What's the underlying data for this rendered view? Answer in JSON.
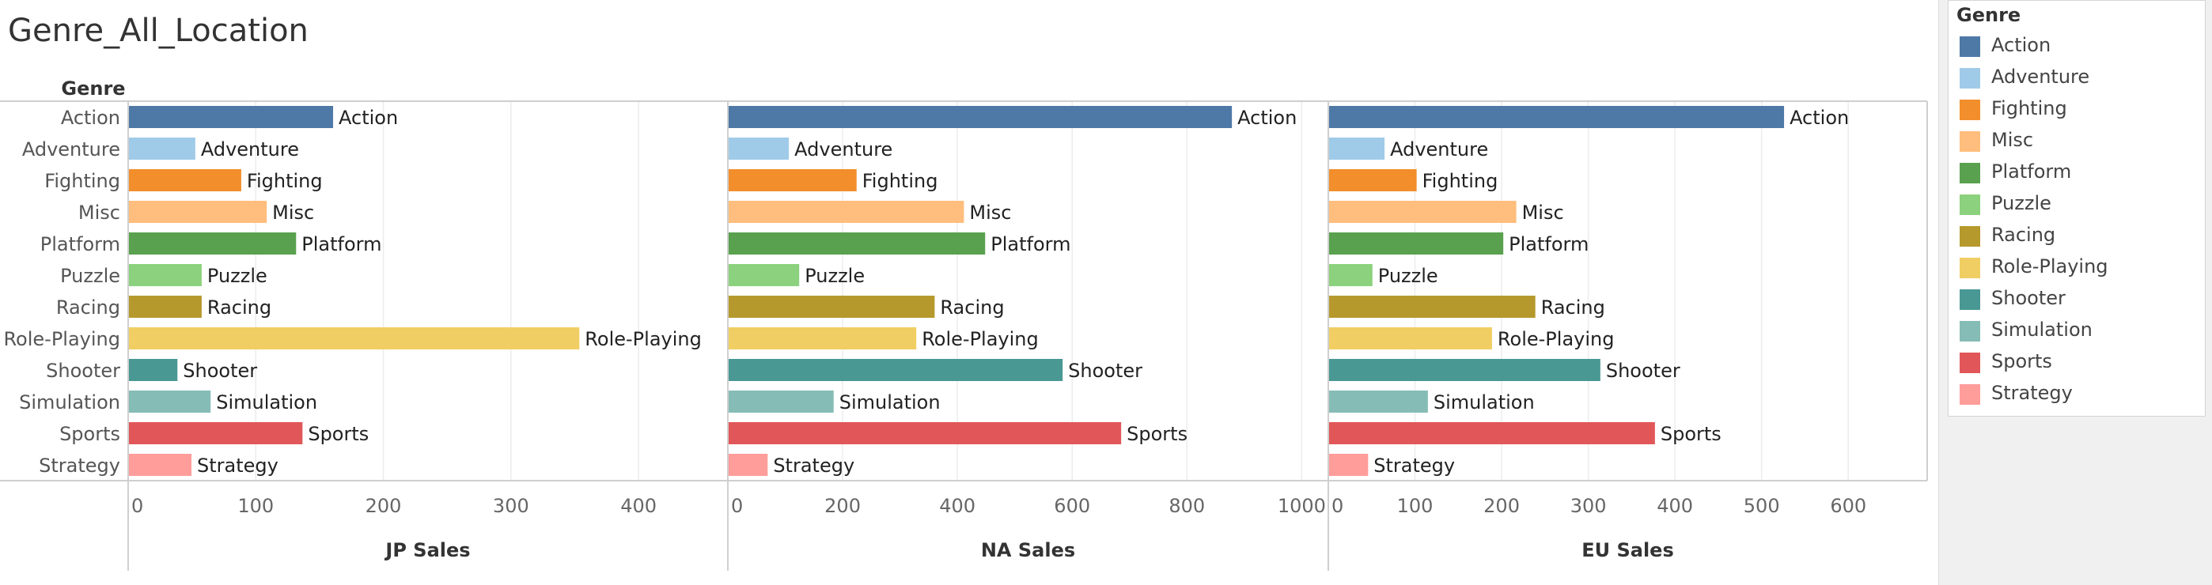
{
  "title": "Genre_All_Location",
  "row_header": "Genre",
  "legend": {
    "title": "Genre",
    "items": [
      {
        "label": "Action",
        "color": "#4e79a7"
      },
      {
        "label": "Adventure",
        "color": "#a0cbe8"
      },
      {
        "label": "Fighting",
        "color": "#f28e2b"
      },
      {
        "label": "Misc",
        "color": "#ffbe7d"
      },
      {
        "label": "Platform",
        "color": "#59a14f"
      },
      {
        "label": "Puzzle",
        "color": "#8cd17d"
      },
      {
        "label": "Racing",
        "color": "#b6992d"
      },
      {
        "label": "Role-Playing",
        "color": "#f1ce63"
      },
      {
        "label": "Shooter",
        "color": "#499894"
      },
      {
        "label": "Simulation",
        "color": "#86bcb6"
      },
      {
        "label": "Sports",
        "color": "#e15759"
      },
      {
        "label": "Strategy",
        "color": "#ff9d9a"
      }
    ]
  },
  "chart_data": [
    {
      "type": "bar",
      "orientation": "horizontal",
      "xlabel": "JP Sales",
      "categories": [
        "Action",
        "Adventure",
        "Fighting",
        "Misc",
        "Platform",
        "Puzzle",
        "Racing",
        "Role-Playing",
        "Shooter",
        "Simulation",
        "Sports",
        "Strategy"
      ],
      "values": [
        160,
        52,
        88,
        108,
        131,
        57,
        57,
        353,
        38,
        64,
        136,
        49
      ],
      "ticks": [
        0,
        100,
        200,
        300,
        400
      ],
      "xlim": [
        0,
        470
      ]
    },
    {
      "type": "bar",
      "orientation": "horizontal",
      "xlabel": "NA Sales",
      "categories": [
        "Action",
        "Adventure",
        "Fighting",
        "Misc",
        "Platform",
        "Puzzle",
        "Racing",
        "Role-Playing",
        "Shooter",
        "Simulation",
        "Sports",
        "Strategy"
      ],
      "values": [
        877,
        105,
        223,
        410,
        447,
        123,
        359,
        327,
        582,
        183,
        684,
        68
      ],
      "ticks": [
        0,
        200,
        400,
        600,
        800,
        1000
      ],
      "xlim": [
        0,
        1045
      ]
    },
    {
      "type": "bar",
      "orientation": "horizontal",
      "xlabel": "EU Sales",
      "categories": [
        "Action",
        "Adventure",
        "Fighting",
        "Misc",
        "Platform",
        "Puzzle",
        "Racing",
        "Role-Playing",
        "Shooter",
        "Simulation",
        "Sports",
        "Strategy"
      ],
      "values": [
        525,
        64,
        101,
        216,
        201,
        50,
        238,
        188,
        313,
        114,
        376,
        45
      ],
      "ticks": [
        0,
        100,
        200,
        300,
        400,
        500,
        600
      ],
      "xlim": [
        0,
        692
      ]
    }
  ]
}
